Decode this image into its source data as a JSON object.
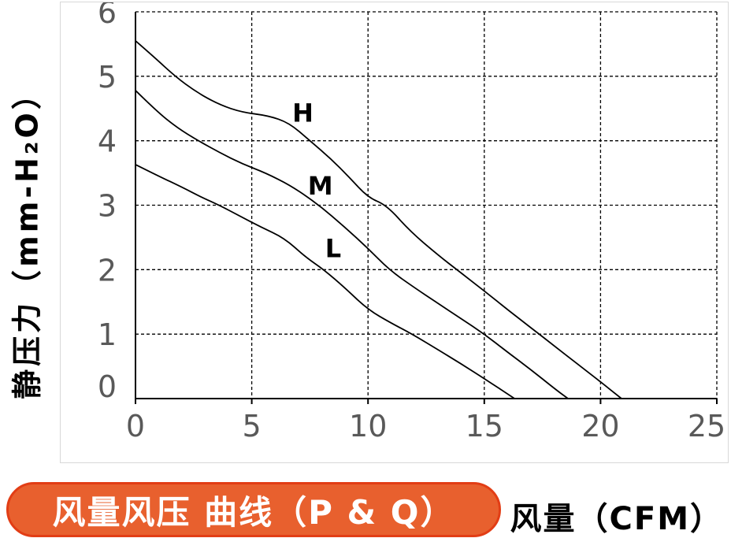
{
  "title_badge": {
    "label": "风量风压 曲线（P & Q）",
    "fill": "#E8602E",
    "border": "#E23D15",
    "text_color": "#FFFFFF"
  },
  "chart_data": {
    "type": "line",
    "title": "风量风压 曲线（P & Q）",
    "xlabel": "风量（CFM）",
    "ylabel": "静压力（mm-H₂O）",
    "xlim": [
      0,
      25
    ],
    "ylim": [
      0,
      6
    ],
    "x_ticks": [
      0,
      5,
      10,
      15,
      20,
      25
    ],
    "y_ticks": [
      0,
      1,
      2,
      3,
      4,
      5,
      6
    ],
    "grid": "dashed-both-directions",
    "legend_position": "inline-curve-labels",
    "colors": {
      "curve": "#000000",
      "grid": "#000000",
      "axis": "#000000",
      "tick_label": "#595959",
      "series_label": "#000000"
    },
    "series": [
      {
        "name": "H",
        "label_at": [
          7.2,
          4.43
        ],
        "points": [
          [
            0,
            5.55
          ],
          [
            0.8,
            5.3
          ],
          [
            1.7,
            5.0
          ],
          [
            2.6,
            4.76
          ],
          [
            3.6,
            4.56
          ],
          [
            4.6,
            4.44
          ],
          [
            5.7,
            4.39
          ],
          [
            6.6,
            4.28
          ],
          [
            7.5,
            4.0
          ],
          [
            8.4,
            3.72
          ],
          [
            9.2,
            3.43
          ],
          [
            10,
            3.12
          ],
          [
            10.8,
            3.0
          ],
          [
            11.8,
            2.6
          ],
          [
            13,
            2.23
          ],
          [
            14,
            1.95
          ],
          [
            15,
            1.67
          ],
          [
            16,
            1.38
          ],
          [
            17,
            1.1
          ],
          [
            18,
            0.82
          ],
          [
            19,
            0.54
          ],
          [
            20,
            0.26
          ],
          [
            20.9,
            0
          ]
        ]
      },
      {
        "name": "M",
        "label_at": [
          7.95,
          3.3
        ],
        "points": [
          [
            0,
            4.78
          ],
          [
            0.9,
            4.46
          ],
          [
            1.8,
            4.2
          ],
          [
            2.7,
            4.0
          ],
          [
            3.6,
            3.82
          ],
          [
            4.6,
            3.64
          ],
          [
            5.6,
            3.5
          ],
          [
            6.7,
            3.3
          ],
          [
            7.9,
            3.0
          ],
          [
            9,
            2.66
          ],
          [
            10,
            2.33
          ],
          [
            10.9,
            2.0
          ],
          [
            12,
            1.72
          ],
          [
            13,
            1.48
          ],
          [
            14,
            1.24
          ],
          [
            15,
            1.0
          ],
          [
            16,
            0.72
          ],
          [
            17,
            0.45
          ],
          [
            18,
            0.16
          ],
          [
            18.6,
            0
          ]
        ]
      },
      {
        "name": "L",
        "label_at": [
          8.5,
          2.33
        ],
        "points": [
          [
            0,
            3.63
          ],
          [
            1,
            3.45
          ],
          [
            2,
            3.28
          ],
          [
            2.8,
            3.13
          ],
          [
            3.6,
            3.0
          ],
          [
            4.5,
            2.83
          ],
          [
            5.4,
            2.66
          ],
          [
            6.4,
            2.49
          ],
          [
            7.3,
            2.2
          ],
          [
            8.1,
            2.0
          ],
          [
            9,
            1.72
          ],
          [
            10,
            1.38
          ],
          [
            11,
            1.17
          ],
          [
            11.9,
            1.0
          ],
          [
            13,
            0.76
          ],
          [
            14,
            0.54
          ],
          [
            15,
            0.31
          ],
          [
            16.3,
            0
          ]
        ]
      }
    ]
  }
}
